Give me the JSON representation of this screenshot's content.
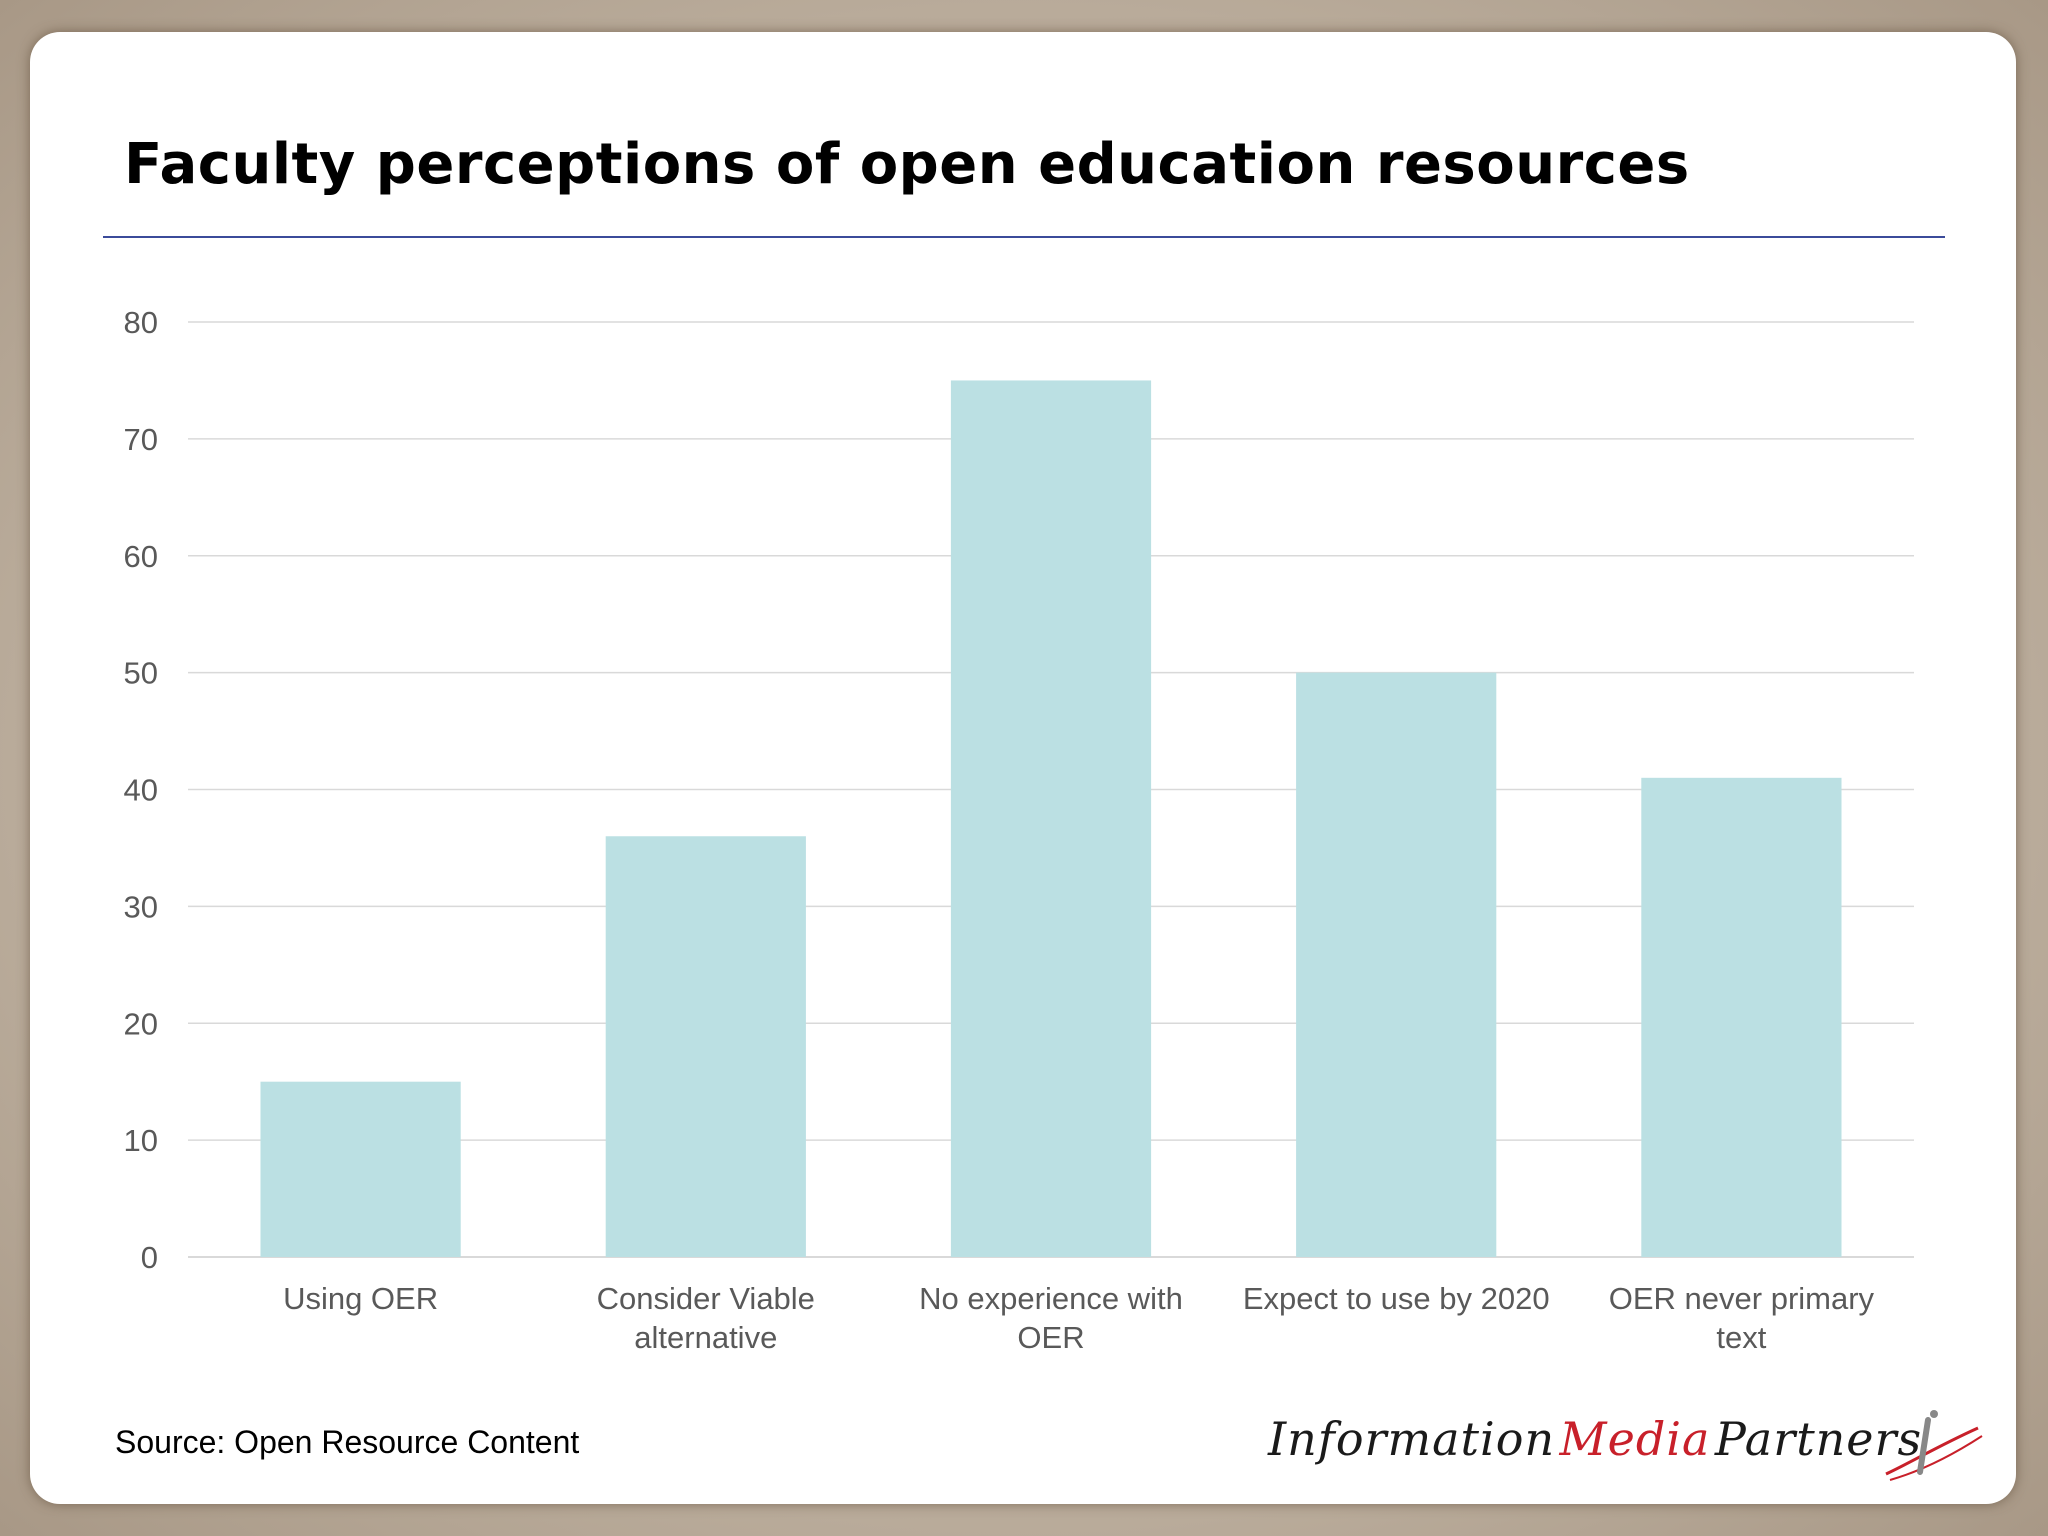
{
  "slide": {
    "title": "Faculty perceptions of open education resources",
    "source": "Source: Open Resource Content"
  },
  "logo": {
    "word1": "Information",
    "word2": "Media",
    "word3": "Partners",
    "colors": {
      "dark": "#1a1a1a",
      "accent": "#c8202a"
    }
  },
  "chart_data": {
    "type": "bar",
    "categories": [
      [
        "Using OER"
      ],
      [
        "Consider Viable",
        "alternative"
      ],
      [
        "No experience with",
        "OER"
      ],
      [
        "Expect to use by 2020"
      ],
      [
        "OER never primary",
        "text"
      ]
    ],
    "values": [
      15,
      36,
      75,
      50,
      41
    ],
    "ylim": [
      0,
      80
    ],
    "yticks": [
      0,
      10,
      20,
      30,
      40,
      50,
      60,
      70,
      80
    ],
    "grid": true,
    "bar_color": "#bbe0e3",
    "grid_color": "#d9d9d9",
    "tick_color": "#595959"
  }
}
